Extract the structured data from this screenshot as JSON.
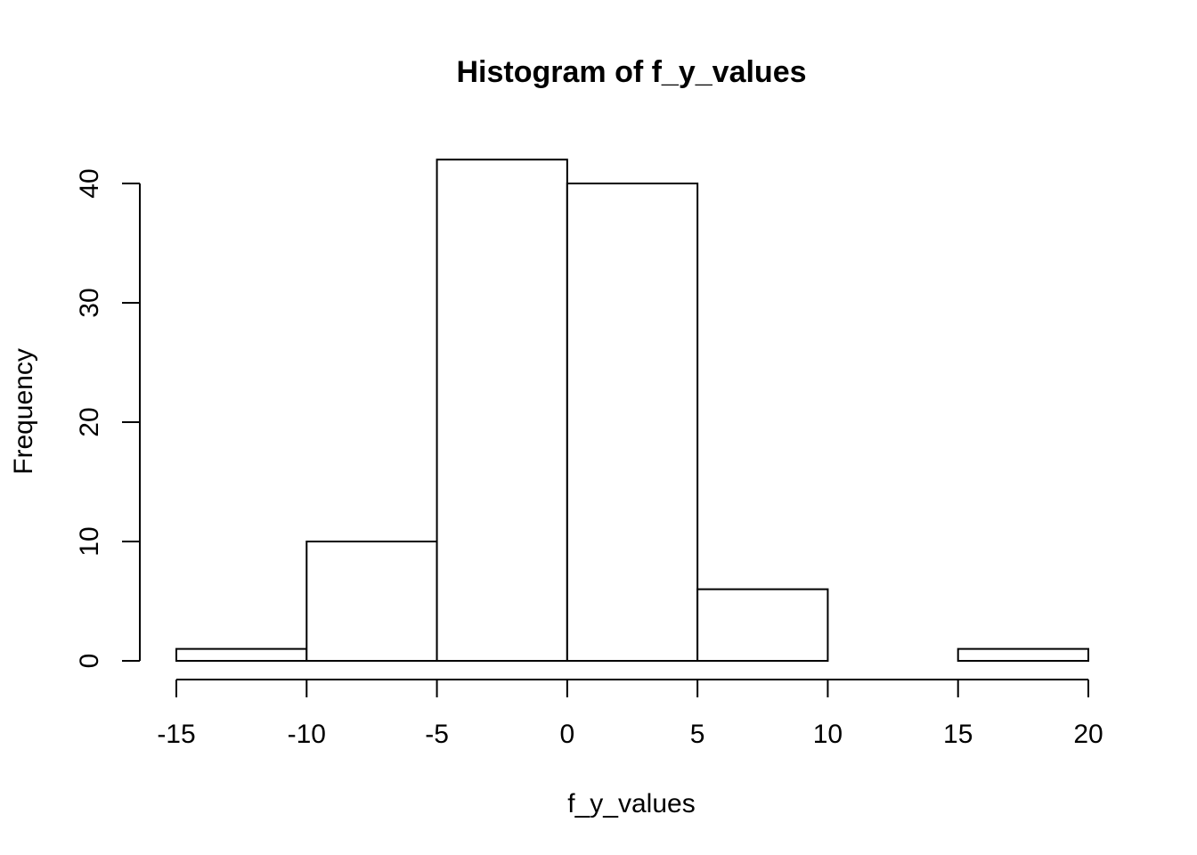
{
  "chart_data": {
    "type": "bar",
    "title": "Histogram of f_y_values",
    "xlabel": "f_y_values",
    "ylabel": "Frequency",
    "bins": [
      {
        "from": -15,
        "to": -10,
        "count": 1
      },
      {
        "from": -10,
        "to": -5,
        "count": 10
      },
      {
        "from": -5,
        "to": 0,
        "count": 42
      },
      {
        "from": 0,
        "to": 5,
        "count": 40
      },
      {
        "from": 5,
        "to": 10,
        "count": 6
      },
      {
        "from": 10,
        "to": 15,
        "count": 0
      },
      {
        "from": 15,
        "to": 20,
        "count": 1
      }
    ],
    "x_ticks": [
      -15,
      -10,
      -5,
      0,
      5,
      10,
      15,
      20
    ],
    "x_tick_labels": [
      "-15",
      "-10",
      "-5",
      "0",
      "5",
      "10",
      "15",
      "20"
    ],
    "y_ticks": [
      0,
      10,
      20,
      30,
      40
    ],
    "y_tick_labels": [
      "0",
      "10",
      "20",
      "30",
      "40"
    ],
    "xlim": [
      -15,
      20
    ],
    "ylim": [
      0,
      40
    ],
    "grid": false,
    "bar_fill": "#ffffff",
    "bar_stroke": "#000000"
  }
}
